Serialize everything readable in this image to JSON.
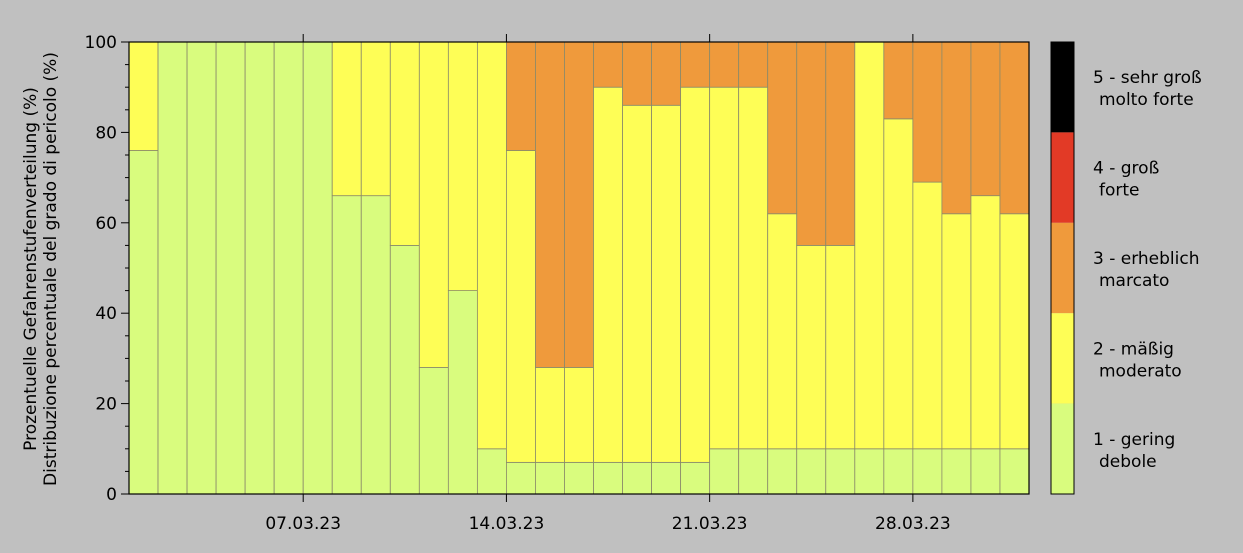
{
  "chart_data": {
    "type": "bar",
    "stacked": true,
    "ylabel_line1": "Prozentuelle Gefahrenstufenverteilung (%)",
    "ylabel_line2": "Distribuzione percentuale del grado di pericolo (%)",
    "ylim": [
      0,
      100
    ],
    "yticks": [
      "0",
      "20",
      "40",
      "60",
      "80",
      "100"
    ],
    "x_date_ticks": [
      {
        "label": "07.03.23",
        "after_bar": 6
      },
      {
        "label": "14.03.23",
        "after_bar": 13
      },
      {
        "label": "21.03.23",
        "after_bar": 20
      },
      {
        "label": "28.03.23",
        "after_bar": 27
      }
    ],
    "series": [
      {
        "name": "1 - gering / debole",
        "color": "#d9fc7e",
        "values": [
          76,
          100,
          100,
          100,
          100,
          100,
          100,
          66,
          66,
          55,
          28,
          45,
          10,
          7,
          7,
          7,
          7,
          7,
          7,
          7,
          10,
          10,
          10,
          10,
          10,
          10,
          10,
          10,
          10,
          10,
          10
        ]
      },
      {
        "name": "2 - mäßig / moderato",
        "color": "#fefe56",
        "values": [
          24,
          0,
          0,
          0,
          0,
          0,
          0,
          34,
          34,
          45,
          72,
          55,
          90,
          69,
          21,
          21,
          83,
          79,
          79,
          83,
          80,
          80,
          52,
          45,
          45,
          90,
          73,
          59,
          52,
          56,
          52
        ]
      },
      {
        "name": "3 - erheblich / marcato",
        "color": "#ef9a3c",
        "values": [
          0,
          0,
          0,
          0,
          0,
          0,
          0,
          0,
          0,
          0,
          0,
          0,
          0,
          24,
          72,
          72,
          10,
          14,
          14,
          10,
          10,
          10,
          38,
          45,
          45,
          0,
          17,
          31,
          38,
          34,
          38
        ]
      },
      {
        "name": "4 - groß / forte",
        "color": "#e23a26",
        "values": [
          0,
          0,
          0,
          0,
          0,
          0,
          0,
          0,
          0,
          0,
          0,
          0,
          0,
          0,
          0,
          0,
          0,
          0,
          0,
          0,
          0,
          0,
          0,
          0,
          0,
          0,
          0,
          0,
          0,
          0,
          0
        ]
      },
      {
        "name": "5 - sehr groß / molto forte",
        "color": "#000000",
        "values": [
          0,
          0,
          0,
          0,
          0,
          0,
          0,
          0,
          0,
          0,
          0,
          0,
          0,
          0,
          0,
          0,
          0,
          0,
          0,
          0,
          0,
          0,
          0,
          0,
          0,
          0,
          0,
          0,
          0,
          0,
          0
        ]
      }
    ],
    "legend": [
      {
        "line1": "5 - sehr groß",
        "line2": "molto forte",
        "color": "#000000"
      },
      {
        "line1": "4 - groß",
        "line2": "forte",
        "color": "#e23a26"
      },
      {
        "line1": "3 - erheblich",
        "line2": "marcato",
        "color": "#ef9a3c"
      },
      {
        "line1": "2 - mäßig",
        "line2": "moderato",
        "color": "#fefe56"
      },
      {
        "line1": "1 - gering",
        "line2": "debole",
        "color": "#d9fc7e"
      }
    ],
    "legend_placement": "right"
  }
}
